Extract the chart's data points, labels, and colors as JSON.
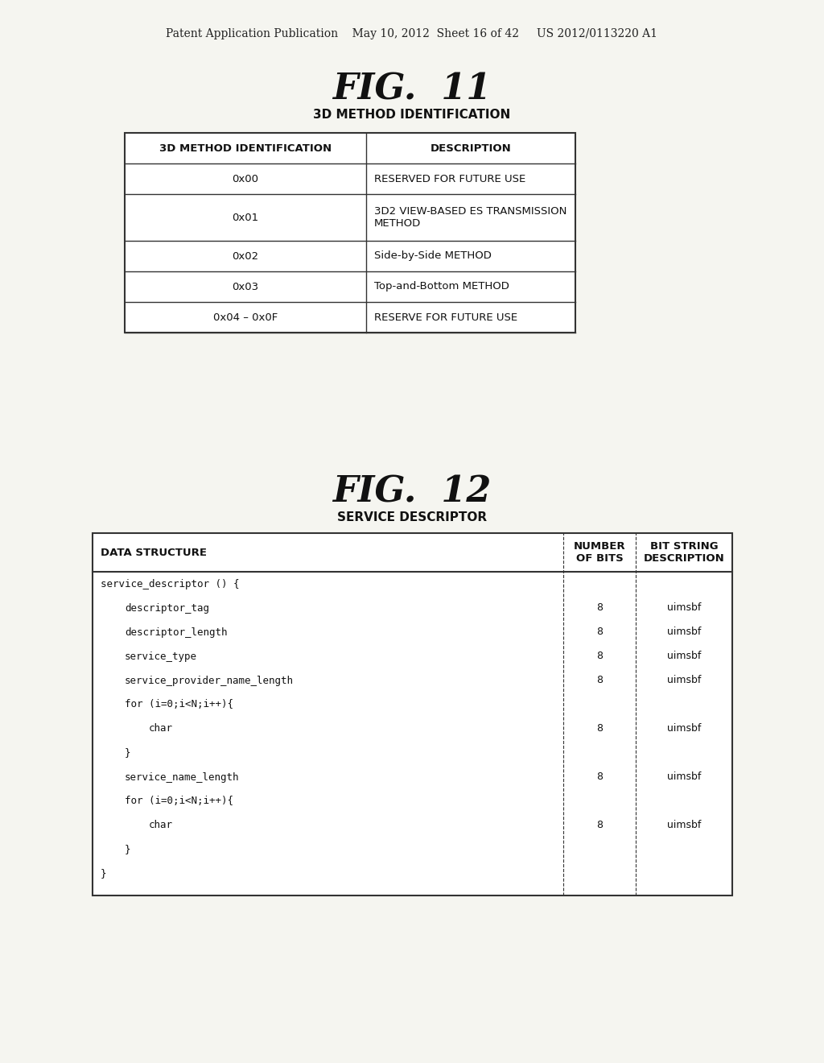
{
  "bg_color": "#f5f5f0",
  "header_text": "Patent Application Publication    May 10, 2012  Sheet 16 of 42     US 2012/0113220 A1",
  "fig11_title": "FIG.  11",
  "fig11_subtitle": "3D METHOD IDENTIFICATION",
  "fig11_table": {
    "headers": [
      "3D METHOD IDENTIFICATION",
      "DESCRIPTION"
    ],
    "rows": [
      [
        "0x00",
        "RESERVED FOR FUTURE USE"
      ],
      [
        "0x01",
        "3D2 VIEW-BASED ES TRANSMISSION\nMETHOD"
      ],
      [
        "0x02",
        "Side-by-Side METHOD"
      ],
      [
        "0x03",
        "Top-and-Bottom METHOD"
      ],
      [
        "0x04 – 0x0F",
        "RESERVE FOR FUTURE USE"
      ]
    ]
  },
  "fig12_title": "FIG.  12",
  "fig12_subtitle": "SERVICE DESCRIPTOR",
  "fig12_table": {
    "col1_header": "DATA STRUCTURE",
    "col2_header": "NUMBER\nOF BITS",
    "col3_header": "BIT STRING\nDESCRIPTION",
    "rows": [
      {
        "indent": 0,
        "text": "service_descriptor () {",
        "bits": "",
        "desc": ""
      },
      {
        "indent": 1,
        "text": "descriptor_tag",
        "bits": "8",
        "desc": "uimsbf"
      },
      {
        "indent": 1,
        "text": "descriptor_length",
        "bits": "8",
        "desc": "uimsbf"
      },
      {
        "indent": 1,
        "text": "service_type",
        "bits": "8",
        "desc": "uimsbf"
      },
      {
        "indent": 1,
        "text": "service_provider_name_length",
        "bits": "8",
        "desc": "uimsbf"
      },
      {
        "indent": 1,
        "text": "for (i=0;i<N;i++){",
        "bits": "",
        "desc": ""
      },
      {
        "indent": 2,
        "text": "char",
        "bits": "8",
        "desc": "uimsbf"
      },
      {
        "indent": 1,
        "text": "}",
        "bits": "",
        "desc": ""
      },
      {
        "indent": 1,
        "text": "service_name_length",
        "bits": "8",
        "desc": "uimsbf"
      },
      {
        "indent": 1,
        "text": "for (i=0;i<N;i++){",
        "bits": "",
        "desc": ""
      },
      {
        "indent": 2,
        "text": "char",
        "bits": "8",
        "desc": "uimsbf"
      },
      {
        "indent": 1,
        "text": "}",
        "bits": "",
        "desc": ""
      },
      {
        "indent": 0,
        "text": "}",
        "bits": "",
        "desc": ""
      }
    ]
  }
}
